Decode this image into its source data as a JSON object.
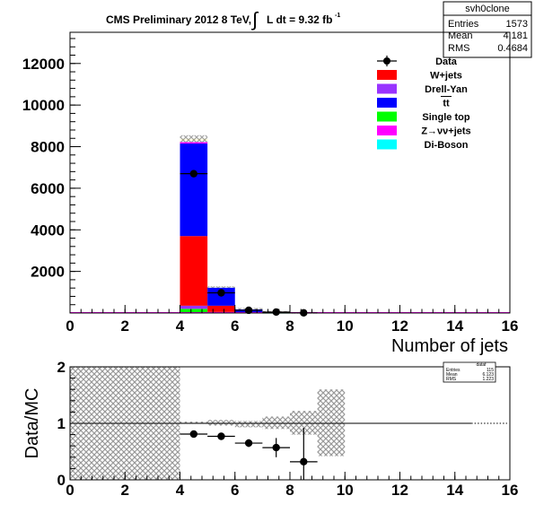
{
  "chart_data": [
    {
      "type": "bar",
      "subtype": "stacked-histogram",
      "title_main": "CMS Preliminary 2012 8 TeV,",
      "title_lumi": "L dt = 9.32 fb",
      "title_lumi_exp": "-1",
      "title_integral": "∫",
      "xlabel": "Number of jets",
      "ylabel": "",
      "xlim": [
        0,
        16
      ],
      "ylim": [
        0,
        13500
      ],
      "xticks": [
        0,
        2,
        4,
        6,
        8,
        10,
        12,
        14,
        16
      ],
      "yticks": [
        2000,
        4000,
        6000,
        8000,
        10000,
        12000
      ],
      "bin_edges": [
        4,
        5,
        6,
        7,
        8,
        9
      ],
      "stack_series": [
        {
          "name": "Single top",
          "color": "#00ff00",
          "values": [
            200,
            30,
            5,
            1,
            0
          ]
        },
        {
          "name": "Drell-Yan",
          "color": "#9933ff",
          "values": [
            150,
            20,
            4,
            1,
            0
          ]
        },
        {
          "name": "W+jets",
          "color": "#ff0000",
          "values": [
            3350,
            300,
            30,
            10,
            5
          ]
        },
        {
          "name": "tt",
          "color": "#0000ff",
          "values": [
            4450,
            870,
            170,
            60,
            10
          ]
        },
        {
          "name": "Z→νν+jets",
          "color": "#ff00ff",
          "values": [
            100,
            20,
            5,
            1,
            0
          ]
        },
        {
          "name": "Di-Boson",
          "color": "#00ffff",
          "values": [
            30,
            5,
            1,
            0,
            0
          ]
        },
        {
          "name": "",
          "color": "#ffff00",
          "values": [
            100,
            15,
            3,
            1,
            0
          ]
        }
      ],
      "data_points": {
        "name": "Data",
        "x": [
          4.5,
          5.5,
          6.5,
          7.5,
          8.5
        ],
        "y": [
          6700,
          970,
          130,
          45,
          8
        ],
        "yerr": [
          82,
          31,
          11,
          7,
          3
        ]
      },
      "legend": {
        "placement": "top-right",
        "entries": [
          {
            "label": "Data",
            "kind": "marker"
          },
          {
            "label": "W+jets",
            "kind": "box",
            "color": "#ff0000"
          },
          {
            "label": "Drell-Yan",
            "kind": "box",
            "color": "#9933ff"
          },
          {
            "label": "tt",
            "kind": "box",
            "color": "#0000ff",
            "overline": true
          },
          {
            "label": "Single top",
            "kind": "box",
            "color": "#00ff00"
          },
          {
            "label": "Z→νν+jets",
            "kind": "box",
            "color": "#ff00ff"
          },
          {
            "label": "Di-Boson",
            "kind": "box",
            "color": "#00ffff"
          }
        ]
      },
      "stats_box": {
        "name": "svh0clone",
        "rows": [
          {
            "label": "Entries",
            "value": "1573"
          },
          {
            "label": "Mean",
            "value": "4.181"
          },
          {
            "label": "RMS",
            "value": "0.4684"
          }
        ]
      }
    },
    {
      "type": "scatter",
      "subtype": "ratio",
      "xlabel": "",
      "ylabel": "Data/MC",
      "xlim": [
        0,
        16
      ],
      "ylim": [
        0,
        2
      ],
      "xticks": [
        0,
        2,
        4,
        6,
        8,
        10,
        12,
        14,
        16
      ],
      "yticks": [
        0,
        1,
        2
      ],
      "reference_line": 1,
      "points": {
        "x": [
          4.5,
          5.5,
          6.5,
          7.5,
          8.5
        ],
        "y": [
          0.81,
          0.77,
          0.65,
          0.57,
          0.32
        ],
        "xerr": [
          0.5,
          0.5,
          0.5,
          0.5,
          0.5
        ],
        "yerr": [
          0.03,
          0.04,
          0.07,
          0.17,
          0.6
        ]
      },
      "uncertainty_bands": [
        {
          "x0": 0,
          "x1": 4,
          "y0": 0,
          "y1": 2
        },
        {
          "x0": 4,
          "x1": 5,
          "y0": 0.99,
          "y1": 1.03
        },
        {
          "x0": 5,
          "x1": 6,
          "y0": 0.96,
          "y1": 1.06
        },
        {
          "x0": 6,
          "x1": 7,
          "y0": 0.93,
          "y1": 1.04
        },
        {
          "x0": 7,
          "x1": 8,
          "y0": 0.9,
          "y1": 1.12
        },
        {
          "x0": 8,
          "x1": 9,
          "y0": 0.8,
          "y1": 1.22
        },
        {
          "x0": 9,
          "x1": 10,
          "y0": 0.42,
          "y1": 1.6
        }
      ],
      "stats_box": {
        "name": "dataf",
        "rows": [
          {
            "label": "Entries",
            "value": "115"
          },
          {
            "label": "Mean",
            "value": "6.123"
          },
          {
            "label": "RMS",
            "value": "1.223"
          }
        ]
      }
    }
  ]
}
